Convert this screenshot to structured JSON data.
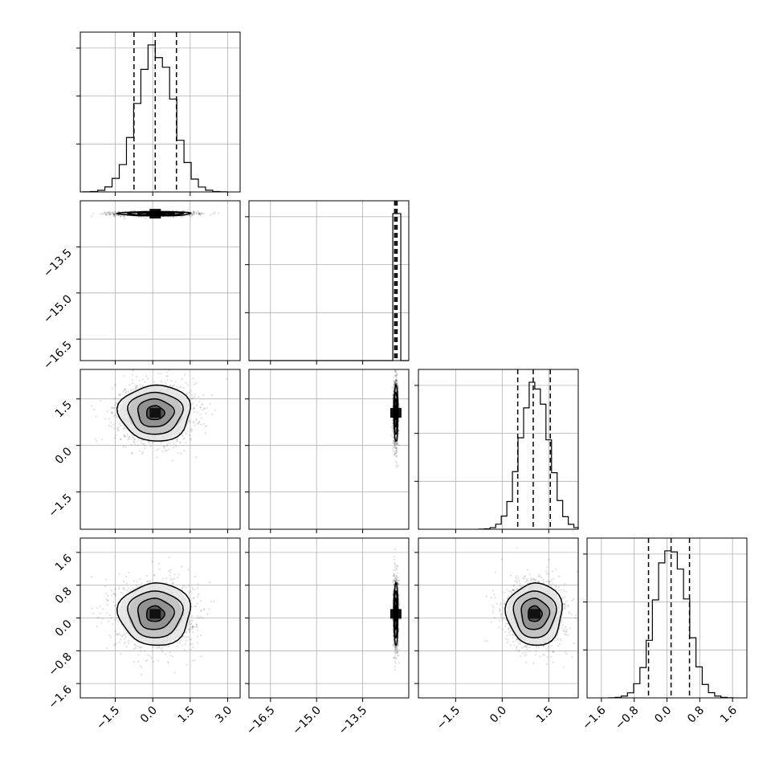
{
  "chart_data": {
    "type": "corner",
    "parameters": [
      {
        "index": 0,
        "range": [
          -2.9,
          3.5
        ],
        "ticks": [
          -1.5,
          0.0,
          1.5,
          3.0
        ],
        "tick_labels": [
          "−1.5",
          "0.0",
          "1.5",
          "3.0"
        ],
        "mean": 0.1,
        "std": 0.72,
        "quantiles": [
          -0.75,
          0.1,
          0.95
        ]
      },
      {
        "index": 1,
        "range": [
          -17.2,
          -12.0
        ],
        "ticks": [
          -16.5,
          -15.0,
          -13.5
        ],
        "tick_labels": [
          "−16.5",
          "−15.0",
          "−13.5"
        ],
        "mean": -12.42,
        "std": 0.035,
        "quantiles": [
          -12.46,
          -12.42,
          -12.38
        ]
      },
      {
        "index": 2,
        "range": [
          -2.7,
          2.45
        ],
        "ticks": [
          -1.5,
          0.0,
          1.5
        ],
        "tick_labels": [
          "−1.5",
          "0.0",
          "1.5"
        ],
        "mean": 1.05,
        "std": 0.45,
        "quantiles": [
          0.5,
          1.0,
          1.55
        ]
      },
      {
        "index": 3,
        "range": [
          -1.95,
          1.95
        ],
        "ticks": [
          -1.6,
          -0.8,
          0.0,
          0.8,
          1.6
        ],
        "tick_labels": [
          "−1.6",
          "−0.8",
          "0.0",
          "0.8",
          "1.6"
        ],
        "mean": 0.1,
        "std": 0.38,
        "quantiles": [
          -0.45,
          0.1,
          0.55
        ]
      }
    ],
    "histograms": [
      {
        "param": 0,
        "bins": 20,
        "qlines": [
          -0.75,
          0.1,
          0.95
        ]
      },
      {
        "param": 1,
        "bins": 20,
        "qlines": [
          -12.46,
          -12.42,
          -12.38
        ]
      },
      {
        "param": 2,
        "bins": 20,
        "qlines": [
          0.5,
          1.0,
          1.55
        ]
      },
      {
        "param": 3,
        "bins": 20,
        "qlines": [
          -0.45,
          0.1,
          0.55
        ]
      }
    ],
    "scatter_panels": [
      {
        "row": 1,
        "col": 0
      },
      {
        "row": 2,
        "col": 0
      },
      {
        "row": 2,
        "col": 1
      },
      {
        "row": 3,
        "col": 0
      },
      {
        "row": 3,
        "col": 1
      },
      {
        "row": 3,
        "col": 2
      }
    ],
    "contour_levels": [
      0.5,
      1.0,
      1.5,
      2.0
    ],
    "grid": true,
    "samples_per_panel": 1400
  }
}
